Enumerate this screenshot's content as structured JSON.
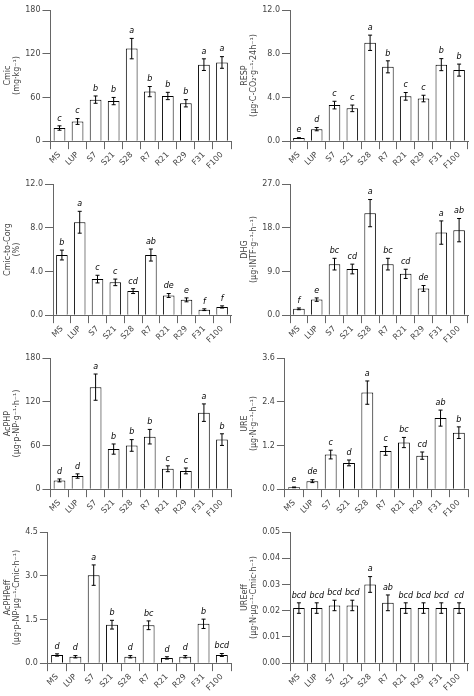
{
  "chart_data": [
    {
      "type": "bar",
      "categories": [
        "MS",
        "LUP",
        "S7",
        "S21",
        "S28",
        "R7",
        "R21",
        "R29",
        "F31",
        "F100"
      ],
      "values": [
        18,
        27,
        57,
        55,
        127,
        68,
        62,
        52,
        105,
        108
      ],
      "errors": [
        3,
        4,
        5,
        5,
        14,
        7,
        5,
        5,
        8,
        8
      ],
      "letters": [
        "c",
        "c",
        "b",
        "b",
        "a",
        "b",
        "b",
        "b",
        "a",
        "a"
      ],
      "ylabel": "Cmic (mg·kg⁻¹)",
      "ylim": [
        0,
        180
      ],
      "yticks": [
        0,
        60,
        120,
        180
      ],
      "color": "white",
      "grid": false
    },
    {
      "type": "bar",
      "categories": [
        "MS",
        "LUP",
        "S7",
        "S21",
        "S28",
        "R7",
        "R21",
        "R29",
        "F31",
        "F100"
      ],
      "values": [
        0.28,
        1.1,
        3.3,
        3.0,
        9.0,
        6.8,
        4.1,
        3.9,
        7.0,
        6.5
      ],
      "errors": [
        0.04,
        0.15,
        0.35,
        0.3,
        0.7,
        0.55,
        0.35,
        0.3,
        0.55,
        0.55
      ],
      "letters": [
        "e",
        "d",
        "c",
        "c",
        "a",
        "b",
        "c",
        "c",
        "b",
        "b"
      ],
      "ylabel": "RESP (µg·C-CO₂·g⁻¹·24h⁻¹)",
      "ylim": [
        0,
        12.0
      ],
      "yticks": [
        {
          "value": 0,
          "label": "0.0"
        },
        {
          "value": 4,
          "label": "4.0"
        },
        {
          "value": 8,
          "label": "8.0"
        },
        {
          "value": 12,
          "label": "12.0"
        }
      ],
      "color": "white",
      "grid": false
    },
    {
      "type": "bar",
      "categories": [
        "MS",
        "LUP",
        "S7",
        "S21",
        "S28",
        "R7",
        "R21",
        "R29",
        "F31",
        "F100"
      ],
      "values": [
        5.5,
        8.5,
        3.3,
        3.0,
        2.2,
        5.5,
        1.8,
        1.4,
        0.5,
        0.75
      ],
      "errors": [
        0.45,
        1.0,
        0.35,
        0.3,
        0.22,
        0.55,
        0.18,
        0.18,
        0.08,
        0.1
      ],
      "letters": [
        "b",
        "a",
        "c",
        "c",
        "cd",
        "ab",
        "de",
        "e",
        "f",
        "f"
      ],
      "ylabel": "Cmic-to-Corg (%)",
      "ylim": [
        0,
        12.0
      ],
      "yticks": [
        {
          "value": 0,
          "label": "0.0"
        },
        {
          "value": 4,
          "label": "4.0"
        },
        {
          "value": 8,
          "label": "8.0"
        },
        {
          "value": 12,
          "label": "12.0"
        }
      ],
      "color": "white",
      "grid": false
    },
    {
      "type": "bar",
      "categories": [
        "MS",
        "LUP",
        "S7",
        "S21",
        "S28",
        "R7",
        "R21",
        "R29",
        "F31",
        "F100"
      ],
      "values": [
        1.3,
        3.2,
        10.5,
        9.5,
        21.0,
        10.5,
        8.5,
        5.5,
        17.0,
        17.5
      ],
      "errors": [
        0.18,
        0.35,
        1.2,
        1.0,
        2.8,
        1.2,
        0.95,
        0.6,
        2.4,
        2.4
      ],
      "letters": [
        "f",
        "e",
        "bc",
        "cd",
        "a",
        "bc",
        "cd",
        "de",
        "a",
        "ab"
      ],
      "ylabel": "DHG (µg·INTF·g⁻¹·h⁻¹)",
      "ylim": [
        0,
        27.0
      ],
      "yticks": [
        {
          "value": 0,
          "label": "0.0"
        },
        {
          "value": 9,
          "label": "9.0"
        },
        {
          "value": 18,
          "label": "18.0"
        },
        {
          "value": 27,
          "label": "27.0"
        }
      ],
      "color": "white",
      "grid": false
    },
    {
      "type": "bar",
      "categories": [
        "MS",
        "LUP",
        "S7",
        "S21",
        "S28",
        "R7",
        "R21",
        "R29",
        "F31",
        "F100"
      ],
      "values": [
        12,
        18,
        140,
        55,
        60,
        72,
        28,
        25,
        105,
        68
      ],
      "errors": [
        2,
        3,
        18,
        7,
        8,
        10,
        4,
        4,
        12,
        8
      ],
      "letters": [
        "d",
        "d",
        "a",
        "b",
        "b",
        "b",
        "c",
        "c",
        "a",
        "b"
      ],
      "ylabel": "AcPHP (µg·p-NP·g⁻¹·h⁻¹)",
      "ylim": [
        0,
        180
      ],
      "yticks": [
        0,
        60,
        120,
        180
      ],
      "color": "white",
      "grid": false
    },
    {
      "type": "bar",
      "categories": [
        "MS",
        "LUP",
        "S7",
        "S21",
        "S28",
        "R7",
        "R21",
        "R29",
        "F31",
        "F100"
      ],
      "values": [
        0.05,
        0.22,
        0.95,
        0.72,
        2.65,
        1.05,
        1.28,
        0.92,
        1.95,
        1.55
      ],
      "errors": [
        0.01,
        0.04,
        0.12,
        0.08,
        0.32,
        0.12,
        0.14,
        0.1,
        0.22,
        0.16
      ],
      "letters": [
        "e",
        "de",
        "c",
        "d",
        "a",
        "c",
        "bc",
        "cd",
        "ab",
        "b"
      ],
      "ylabel": "URE (µg·N·g⁻¹·h⁻¹)",
      "ylim": [
        0,
        3.6
      ],
      "yticks": [
        {
          "value": 0,
          "label": "0.0"
        },
        {
          "value": 1.2,
          "label": "1.2"
        },
        {
          "value": 2.4,
          "label": "2.4"
        },
        {
          "value": 3.6,
          "label": "3.6"
        }
      ],
      "color": "white",
      "grid": false
    },
    {
      "type": "bar",
      "categories": [
        "MS",
        "LUP",
        "S7",
        "S21",
        "S28",
        "R7",
        "R21",
        "R29",
        "F31",
        "F100"
      ],
      "values": [
        0.28,
        0.22,
        3.02,
        1.32,
        0.22,
        1.3,
        0.18,
        0.22,
        1.35,
        0.28
      ],
      "errors": [
        0.04,
        0.04,
        0.35,
        0.15,
        0.04,
        0.15,
        0.04,
        0.04,
        0.16,
        0.05
      ],
      "letters": [
        "d",
        "d",
        "a",
        "b",
        "d",
        "bc",
        "d",
        "d",
        "b",
        "bcd"
      ],
      "ylabel": "AcPHPeff (µg·p-NP·µg⁻¹·Cmic·h⁻¹)",
      "ylim": [
        0,
        4.5
      ],
      "yticks": [
        {
          "value": 0,
          "label": "0.0"
        },
        {
          "value": 1.5,
          "label": "1.5"
        },
        {
          "value": 3,
          "label": "3.0"
        },
        {
          "value": 4.5,
          "label": "4.5"
        }
      ],
      "color": "white",
      "grid": false
    },
    {
      "type": "bar",
      "categories": [
        "MS",
        "LUP",
        "S7",
        "S21",
        "S28",
        "R7",
        "R21",
        "R29",
        "F31",
        "F100"
      ],
      "values": [
        0.021,
        0.021,
        0.022,
        0.022,
        0.03,
        0.023,
        0.021,
        0.021,
        0.021,
        0.021
      ],
      "errors": [
        0.002,
        0.002,
        0.002,
        0.002,
        0.003,
        0.003,
        0.002,
        0.002,
        0.002,
        0.002
      ],
      "letters": [
        "bcd",
        "bcd",
        "bcd",
        "bcd",
        "a",
        "ab",
        "bcd",
        "bcd",
        "bcd",
        "cd"
      ],
      "ylabel": "UREeff (µg·N·µg⁻¹·Cmic·h⁻¹)",
      "ylim": [
        0,
        0.05
      ],
      "yticks": [
        {
          "value": 0,
          "label": "0.00"
        },
        {
          "value": 0.01,
          "label": "0.01"
        },
        {
          "value": 0.02,
          "label": "0.02"
        },
        {
          "value": 0.03,
          "label": "0.03"
        },
        {
          "value": 0.04,
          "label": "0.04"
        },
        {
          "value": 0.05,
          "label": "0.05"
        }
      ],
      "color": "white",
      "grid": false
    }
  ]
}
